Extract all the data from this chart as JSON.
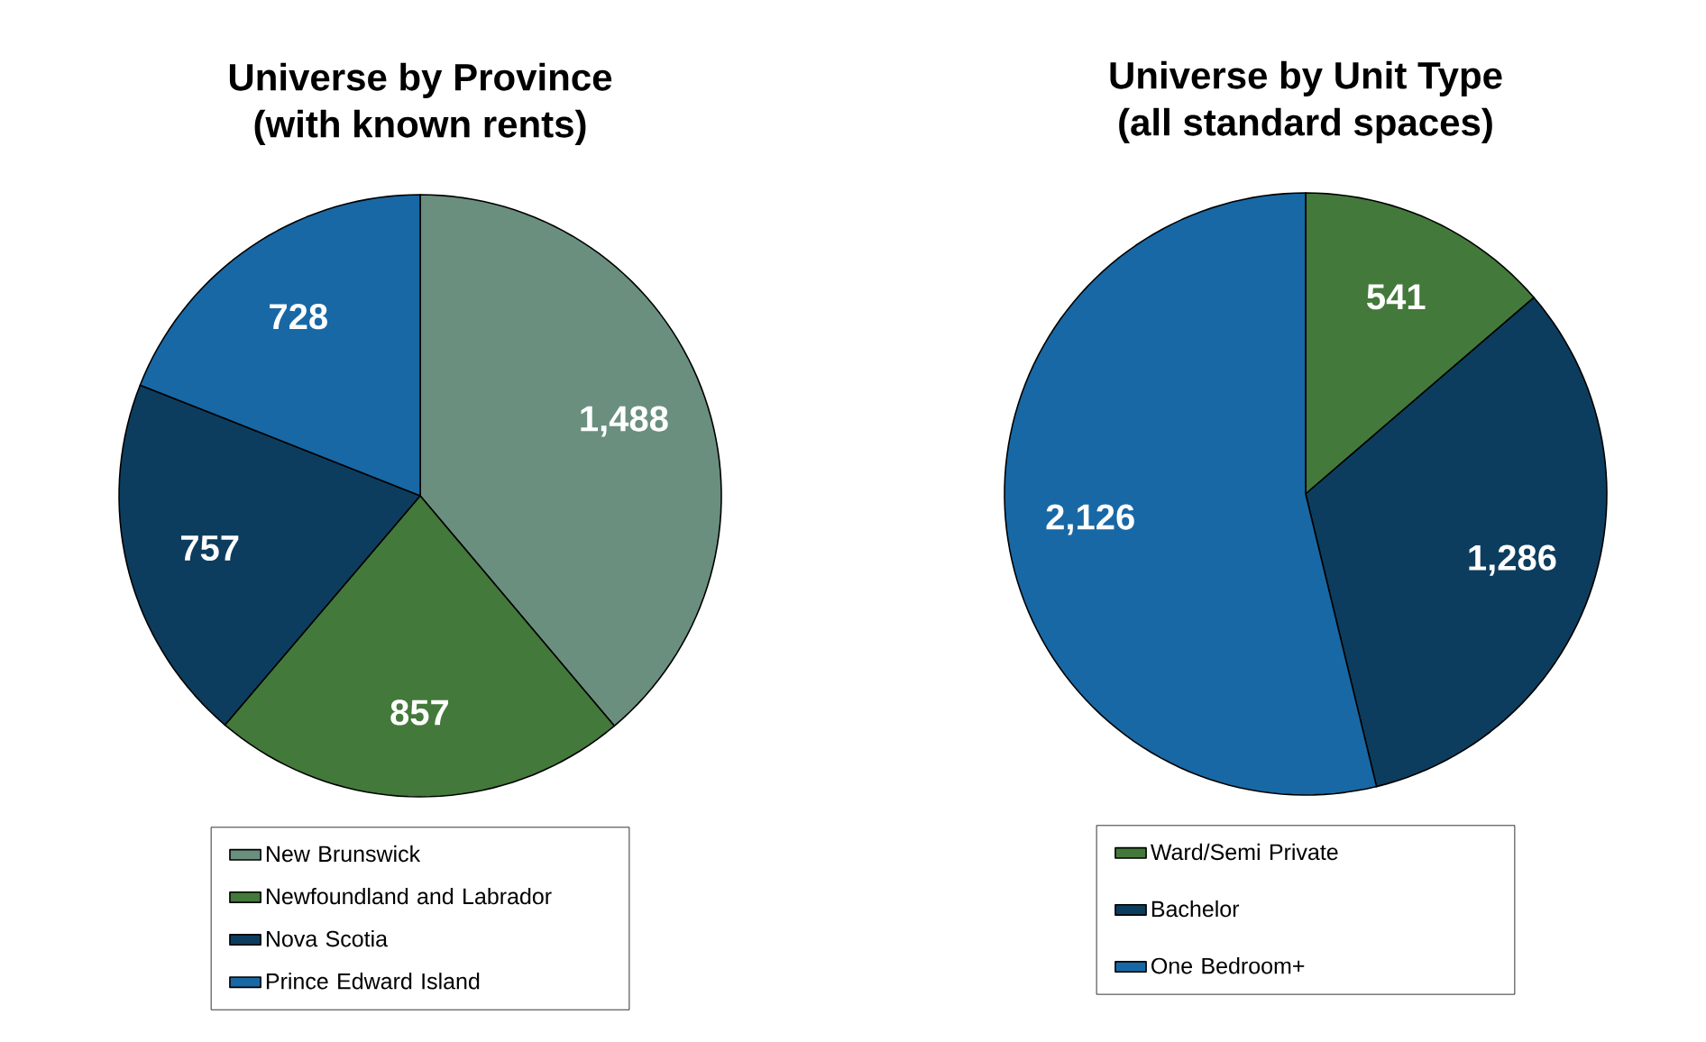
{
  "chart_data": [
    {
      "type": "pie",
      "title": "Universe by Province",
      "subtitle": "(with known rents)",
      "categories": [
        "New Brunswick",
        "Newfoundland and Labrador",
        "Nova Scotia",
        "Prince Edward Island"
      ],
      "values": [
        1488,
        857,
        757,
        728
      ],
      "value_labels": [
        "1,488",
        "857",
        "757",
        "728"
      ],
      "colors": [
        "#6a8f7f",
        "#43793a",
        "#0d3d5e",
        "#1868a5"
      ],
      "legend": "bottom"
    },
    {
      "type": "pie",
      "title": "Universe by Unit Type",
      "subtitle": "(all standard spaces)",
      "categories": [
        "Ward/Semi Private",
        "Bachelor",
        "One Bedroom+"
      ],
      "values": [
        541,
        1286,
        2126
      ],
      "value_labels": [
        "541",
        "1,286",
        "2,126"
      ],
      "colors": [
        "#43793a",
        "#0d3d5e",
        "#1868a5"
      ],
      "legend": "bottom"
    }
  ]
}
